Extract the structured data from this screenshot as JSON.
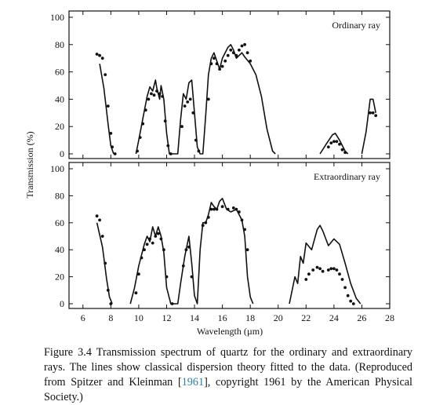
{
  "chart_data": [
    {
      "type": "line",
      "panel_label": "Ordinary ray",
      "ylim": [
        0,
        100
      ],
      "yticks": [
        "0",
        "20",
        "40",
        "60",
        "80",
        "100"
      ],
      "xlim": [
        5,
        28
      ],
      "series": [
        {
          "style": "line",
          "points": [
            [
              7.2,
              66
            ],
            [
              7.5,
              48
            ],
            [
              7.8,
              22
            ],
            [
              8.0,
              6
            ],
            [
              8.2,
              0
            ],
            [
              9.8,
              0
            ],
            [
              10.0,
              10
            ],
            [
              10.3,
              26
            ],
            [
              10.6,
              42
            ],
            [
              10.8,
              49
            ],
            [
              11.0,
              46
            ],
            [
              11.2,
              54
            ],
            [
              11.3,
              48
            ],
            [
              11.5,
              40
            ],
            [
              11.6,
              50
            ],
            [
              11.8,
              40
            ],
            [
              12.0,
              15
            ],
            [
              12.2,
              0
            ],
            [
              12.8,
              0
            ],
            [
              13.0,
              25
            ],
            [
              13.2,
              44
            ],
            [
              13.4,
              40
            ],
            [
              13.6,
              52
            ],
            [
              13.8,
              54
            ],
            [
              14.0,
              30
            ],
            [
              14.2,
              5
            ],
            [
              14.4,
              0
            ],
            [
              14.6,
              0
            ],
            [
              14.8,
              28
            ],
            [
              15.0,
              58
            ],
            [
              15.2,
              70
            ],
            [
              15.4,
              74
            ],
            [
              15.6,
              68
            ],
            [
              15.8,
              62
            ],
            [
              16.0,
              70
            ],
            [
              16.4,
              78
            ],
            [
              16.6,
              80
            ],
            [
              16.8,
              76
            ],
            [
              17.0,
              70
            ],
            [
              17.2,
              72
            ],
            [
              17.4,
              74
            ],
            [
              17.6,
              71
            ],
            [
              18.0,
              66
            ],
            [
              18.4,
              58
            ],
            [
              18.8,
              42
            ],
            [
              19.2,
              18
            ],
            [
              19.6,
              2
            ],
            [
              19.8,
              0
            ],
            [
              23.0,
              0
            ],
            [
              23.5,
              8
            ],
            [
              23.9,
              14
            ],
            [
              24.1,
              15
            ],
            [
              24.4,
              10
            ],
            [
              24.8,
              2
            ],
            [
              25.0,
              0
            ],
            [
              26.0,
              0
            ],
            [
              26.3,
              16
            ],
            [
              26.6,
              40
            ],
            [
              26.8,
              40
            ],
            [
              27.0,
              30
            ]
          ]
        },
        {
          "style": "dots",
          "points": [
            [
              7.0,
              73
            ],
            [
              7.2,
              72
            ],
            [
              7.4,
              70
            ],
            [
              7.6,
              58
            ],
            [
              7.8,
              35
            ],
            [
              8.0,
              15
            ],
            [
              8.1,
              5
            ],
            [
              8.3,
              0
            ],
            [
              9.9,
              2
            ],
            [
              10.1,
              12
            ],
            [
              10.3,
              22
            ],
            [
              10.5,
              32
            ],
            [
              10.7,
              40
            ],
            [
              10.9,
              44
            ],
            [
              11.1,
              43
            ],
            [
              11.3,
              46
            ],
            [
              11.5,
              44
            ],
            [
              11.7,
              42
            ],
            [
              11.9,
              24
            ],
            [
              12.1,
              6
            ],
            [
              12.3,
              0
            ],
            [
              13.1,
              20
            ],
            [
              13.3,
              35
            ],
            [
              13.5,
              38
            ],
            [
              13.7,
              40
            ],
            [
              13.9,
              30
            ],
            [
              14.1,
              10
            ],
            [
              14.3,
              2
            ],
            [
              15.0,
              40
            ],
            [
              15.2,
              66
            ],
            [
              15.4,
              70
            ],
            [
              15.6,
              66
            ],
            [
              15.8,
              62
            ],
            [
              16.0,
              64
            ],
            [
              16.2,
              68
            ],
            [
              16.4,
              72
            ],
            [
              16.6,
              76
            ],
            [
              16.8,
              74
            ],
            [
              17.0,
              72
            ],
            [
              17.2,
              76
            ],
            [
              17.4,
              79
            ],
            [
              17.6,
              80
            ],
            [
              17.8,
              74
            ],
            [
              18.0,
              68
            ],
            [
              23.6,
              5
            ],
            [
              23.8,
              8
            ],
            [
              24.0,
              9
            ],
            [
              24.2,
              9
            ],
            [
              24.4,
              7
            ],
            [
              24.6,
              3
            ],
            [
              24.8,
              1
            ],
            [
              26.6,
              30
            ],
            [
              26.8,
              30
            ],
            [
              27.0,
              28
            ]
          ]
        }
      ]
    },
    {
      "type": "line",
      "panel_label": "Extraordinary ray",
      "ylim": [
        0,
        100
      ],
      "yticks": [
        "0",
        "20",
        "40",
        "60",
        "80",
        "100"
      ],
      "xlim": [
        5,
        28
      ],
      "xticks": [
        "6",
        "8",
        "10",
        "12",
        "14",
        "16",
        "18",
        "20",
        "22",
        "24",
        "26",
        "28"
      ],
      "xlabel": "Wavelength (µm)",
      "series": [
        {
          "style": "line",
          "points": [
            [
              7.0,
              60
            ],
            [
              7.4,
              42
            ],
            [
              7.7,
              18
            ],
            [
              7.9,
              5
            ],
            [
              8.1,
              0
            ],
            [
              9.4,
              0
            ],
            [
              9.7,
              12
            ],
            [
              10.0,
              28
            ],
            [
              10.4,
              44
            ],
            [
              10.6,
              50
            ],
            [
              10.8,
              46
            ],
            [
              11.0,
              57
            ],
            [
              11.2,
              50
            ],
            [
              11.4,
              57
            ],
            [
              11.6,
              50
            ],
            [
              11.8,
              38
            ],
            [
              12.0,
              12
            ],
            [
              12.3,
              0
            ],
            [
              12.8,
              0
            ],
            [
              13.0,
              15
            ],
            [
              13.3,
              35
            ],
            [
              13.6,
              50
            ],
            [
              13.8,
              30
            ],
            [
              14.0,
              6
            ],
            [
              14.2,
              0
            ],
            [
              14.4,
              40
            ],
            [
              14.6,
              60
            ],
            [
              14.8,
              60
            ],
            [
              15.0,
              66
            ],
            [
              15.2,
              75
            ],
            [
              15.4,
              72
            ],
            [
              15.6,
              70
            ],
            [
              15.8,
              76
            ],
            [
              16.0,
              78
            ],
            [
              16.3,
              70
            ],
            [
              16.6,
              68
            ],
            [
              17.0,
              70
            ],
            [
              17.4,
              62
            ],
            [
              17.6,
              50
            ],
            [
              17.8,
              20
            ],
            [
              18.0,
              5
            ],
            [
              18.2,
              0
            ],
            [
              20.8,
              0
            ],
            [
              21.2,
              20
            ],
            [
              21.4,
              15
            ],
            [
              21.6,
              35
            ],
            [
              21.8,
              30
            ],
            [
              22.0,
              45
            ],
            [
              22.4,
              40
            ],
            [
              22.8,
              55
            ],
            [
              23.0,
              58
            ],
            [
              23.2,
              54
            ],
            [
              23.6,
              43
            ],
            [
              24.0,
              48
            ],
            [
              24.4,
              44
            ],
            [
              24.8,
              30
            ],
            [
              25.2,
              15
            ],
            [
              25.6,
              4
            ],
            [
              25.9,
              0
            ]
          ]
        },
        {
          "style": "dots",
          "points": [
            [
              7.0,
              65
            ],
            [
              7.2,
              62
            ],
            [
              7.4,
              50
            ],
            [
              7.6,
              30
            ],
            [
              7.8,
              10
            ],
            [
              8.0,
              0
            ],
            [
              9.8,
              8
            ],
            [
              10.0,
              22
            ],
            [
              10.2,
              34
            ],
            [
              10.4,
              40
            ],
            [
              10.6,
              44
            ],
            [
              10.8,
              48
            ],
            [
              11.0,
              45
            ],
            [
              11.2,
              50
            ],
            [
              11.4,
              52
            ],
            [
              11.6,
              48
            ],
            [
              11.8,
              40
            ],
            [
              12.0,
              20
            ],
            [
              12.4,
              0
            ],
            [
              13.2,
              28
            ],
            [
              13.4,
              40
            ],
            [
              13.6,
              42
            ],
            [
              13.8,
              20
            ],
            [
              14.6,
              58
            ],
            [
              14.8,
              60
            ],
            [
              15.0,
              64
            ],
            [
              15.2,
              70
            ],
            [
              15.4,
              70
            ],
            [
              15.6,
              70
            ],
            [
              16.0,
              72
            ],
            [
              16.4,
              70
            ],
            [
              16.8,
              71
            ],
            [
              17.0,
              70
            ],
            [
              17.2,
              68
            ],
            [
              17.4,
              62
            ],
            [
              17.6,
              55
            ],
            [
              17.8,
              40
            ],
            [
              22.0,
              18
            ],
            [
              22.2,
              22
            ],
            [
              22.5,
              25
            ],
            [
              22.8,
              27
            ],
            [
              23.0,
              26
            ],
            [
              23.2,
              24
            ],
            [
              23.6,
              25
            ],
            [
              23.8,
              26
            ],
            [
              24.0,
              26
            ],
            [
              24.2,
              25
            ],
            [
              24.4,
              22
            ],
            [
              24.6,
              18
            ],
            [
              24.8,
              12
            ],
            [
              25.0,
              6
            ],
            [
              25.2,
              2
            ],
            [
              25.4,
              0
            ]
          ]
        }
      ]
    }
  ],
  "shared_ylabel": "Transmission (%)",
  "caption": {
    "lead": "Figure 3.4 Transmission spectrum of quartz for the ordinary and extraordinary rays. The lines show classical dispersion theory fitted to the data. (Reproduced from Spitzer and Kleinman [",
    "citation": "1961",
    "tail": "], copyright 1961 by the American Physical Society.)"
  }
}
